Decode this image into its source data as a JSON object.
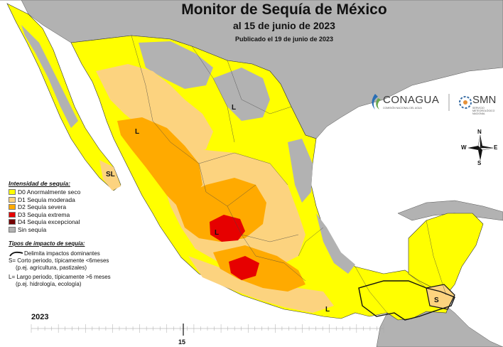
{
  "map": {
    "title": "Monitor de Sequía de México",
    "subtitle": "al 15 de junio de 2023",
    "published": "Publicado el 19 de junio de 2023",
    "colors": {
      "D0": "#ffff00",
      "D1": "#fcd37f",
      "D2": "#ffaa00",
      "D3": "#e60000",
      "D4": "#730000",
      "none": "#b2b2b2",
      "ocean": "#ffffff"
    }
  },
  "legend": {
    "heading": "Intensidad de sequía:",
    "items": [
      {
        "label": "D0 Anormalmente seco",
        "color": "#ffff00"
      },
      {
        "label": "D1 Sequía moderada",
        "color": "#fcd37f"
      },
      {
        "label": "D2 Sequía severa",
        "color": "#ffaa00"
      },
      {
        "label": "D3 Sequía extrema",
        "color": "#e60000"
      },
      {
        "label": "D4 Sequía excepcional",
        "color": "#730000"
      },
      {
        "label": "Sin sequía",
        "color": "#b2b2b2"
      }
    ]
  },
  "impact": {
    "heading": "Tipos de impacto de sequía:",
    "line_label": "Delimita impactos dominantes",
    "short_term_1": "S= Corto periodo, típicamente <6meses",
    "short_term_2": "(p.ej. agricultura, pastizales)",
    "long_term_1": "L= Largo periodo, típicamente >6 meses",
    "long_term_2": "(p.ej. hidrología, ecología)"
  },
  "map_labels": {
    "l_north": "L",
    "l_sonora": "L",
    "sl_baja": "SL",
    "l_west": "L",
    "l_south": "L",
    "s_yucatan": "S"
  },
  "timeline": {
    "year": "2023",
    "current_week": "15"
  },
  "logos": {
    "conagua": "CONAGUA",
    "conagua_sub": "COMISIÓN NACIONAL DEL AGUA",
    "smn": "SMN",
    "smn_sub": "SERVICIO METEOROLÓGICO NACIONAL"
  },
  "compass": {
    "n": "N",
    "s": "S",
    "e": "E",
    "w": "W"
  }
}
